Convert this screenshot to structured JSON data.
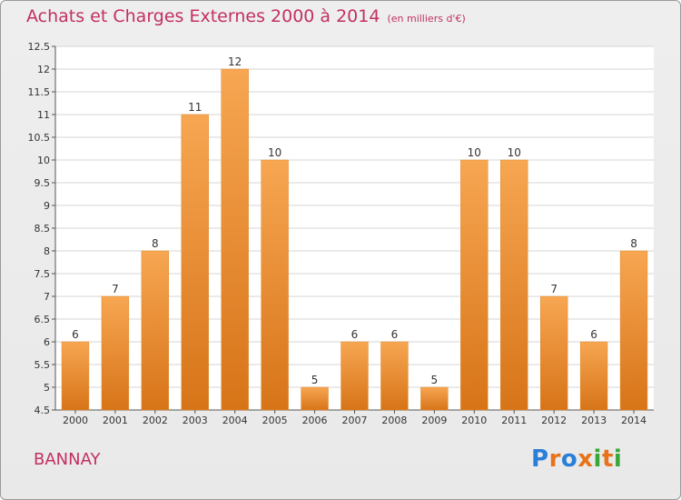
{
  "title": "Achats et Charges Externes 2000 à 2014",
  "subtitle": "(en milliers d'€)",
  "place": "BANNAY",
  "logo": {
    "text": "Proxiti",
    "colors": [
      "#2b7fd8",
      "#e8731a",
      "#2b7fd8",
      "#e8731a",
      "#3aa63a",
      "#e8731a",
      "#3aa63a"
    ]
  },
  "colors": {
    "accent": "#c33060",
    "bar_light": "#f7a652",
    "bar_dark": "#d77418"
  },
  "chart_data": {
    "type": "bar",
    "title": "Achats et Charges Externes 2000 à 2014",
    "subtitle": "(en milliers d'€)",
    "xlabel": "",
    "ylabel": "",
    "categories": [
      "2000",
      "2001",
      "2002",
      "2003",
      "2004",
      "2005",
      "2006",
      "2007",
      "2008",
      "2009",
      "2010",
      "2011",
      "2012",
      "2013",
      "2014"
    ],
    "values": [
      6,
      7,
      8,
      11,
      12,
      10,
      5,
      6,
      6,
      5,
      10,
      10,
      7,
      6,
      8
    ],
    "value_labels": [
      "6",
      "7",
      "8",
      "11",
      "12",
      "10",
      "5",
      "6",
      "6",
      "5",
      "10",
      "10",
      "7",
      "6",
      "8"
    ],
    "ylim": [
      4.5,
      12.5
    ],
    "yticks": [
      4.5,
      5,
      5.5,
      6,
      6.5,
      7,
      7.5,
      8,
      8.5,
      9,
      9.5,
      10,
      10.5,
      11,
      11.5,
      12,
      12.5
    ],
    "ytick_labels": [
      "4.5",
      "5",
      "5.5",
      "6",
      "6.5",
      "7",
      "7.5",
      "8",
      "8.5",
      "9",
      "9.5",
      "10",
      "10.5",
      "11",
      "11.5",
      "12",
      "12.5"
    ],
    "grid": true,
    "legend": "none"
  }
}
